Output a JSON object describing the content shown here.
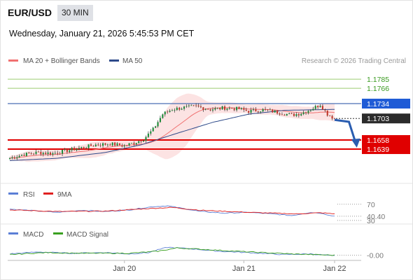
{
  "header": {
    "symbol": "EUR/USD",
    "timeframe": "30 MIN",
    "datetime": "Wednesday, January 21, 2026 5:45:53 PM CET"
  },
  "colors": {
    "ma20": "#f07070",
    "ma50": "#2e4a8a",
    "bollinger_fill": "#fbdede",
    "candle_up": "#1c8c3a",
    "candle_down": "#c0392b",
    "resistance_line": "#9ccc70",
    "pivot_line": "#4a6fb5",
    "support_line": "#e00000",
    "current_label_bg": "#2b2b2b",
    "support_label_bg": "#e00000",
    "pivot_label_bg": "#1f5bd6",
    "arrow": "#2a5db0",
    "rsi": "#5b7fd6",
    "rsi_ma": "#e02020",
    "macd": "#5b7fd6",
    "macd_signal": "#3aa020"
  },
  "chart_data": [
    {
      "type": "candlestick",
      "legend": [
        {
          "name": "MA 20 + Bollinger Bands",
          "color": "#f07070"
        },
        {
          "name": "MA 50",
          "color": "#2e4a8a"
        }
      ],
      "watermark": "Research © 2026 Trading Central",
      "ylim": [
        1.1585,
        1.181
      ],
      "x_ticks": [
        "Jan 20",
        "Jan 21",
        "Jan 22"
      ],
      "x_tick_index": [
        48,
        98,
        136
      ],
      "n_bars": 136,
      "levels": [
        {
          "label": "1.1785",
          "value": 1.1785,
          "kind": "resistance"
        },
        {
          "label": "1.1766",
          "value": 1.1766,
          "kind": "resistance"
        },
        {
          "label": "1.1734",
          "value": 1.1734,
          "kind": "pivot"
        },
        {
          "label": "1.1703",
          "value": 1.1703,
          "kind": "current"
        },
        {
          "label": "1.1658",
          "value": 1.1658,
          "kind": "support"
        },
        {
          "label": "1.1639",
          "value": 1.1639,
          "kind": "support"
        }
      ],
      "close_anchors": [
        [
          0,
          1.162
        ],
        [
          6,
          1.1628
        ],
        [
          12,
          1.1632
        ],
        [
          18,
          1.163
        ],
        [
          24,
          1.1636
        ],
        [
          30,
          1.1642
        ],
        [
          36,
          1.1648
        ],
        [
          42,
          1.165
        ],
        [
          48,
          1.1646
        ],
        [
          52,
          1.1652
        ],
        [
          56,
          1.166
        ],
        [
          60,
          1.168
        ],
        [
          64,
          1.1712
        ],
        [
          68,
          1.1722
        ],
        [
          72,
          1.1725
        ],
        [
          78,
          1.1728
        ],
        [
          84,
          1.1722
        ],
        [
          90,
          1.1725
        ],
        [
          96,
          1.1723
        ],
        [
          100,
          1.1718
        ],
        [
          106,
          1.1721
        ],
        [
          112,
          1.1716
        ],
        [
          118,
          1.171
        ],
        [
          122,
          1.1714
        ],
        [
          126,
          1.1722
        ],
        [
          130,
          1.1732
        ],
        [
          133,
          1.1712
        ],
        [
          136,
          1.1703
        ]
      ],
      "ma50_anchors": [
        [
          0,
          1.1615
        ],
        [
          20,
          1.162
        ],
        [
          40,
          1.1632
        ],
        [
          55,
          1.1648
        ],
        [
          70,
          1.1672
        ],
        [
          85,
          1.1695
        ],
        [
          100,
          1.1712
        ],
        [
          115,
          1.172
        ],
        [
          136,
          1.1722
        ]
      ],
      "forecast": {
        "from": [
          136,
          1.17
        ],
        "via": [
          142,
          1.1696
        ],
        "to": [
          145,
          1.1648
        ]
      }
    },
    {
      "type": "line",
      "name": "RSI",
      "legend": [
        {
          "name": "RSI",
          "color": "#5b7fd6"
        },
        {
          "name": "9MA",
          "color": "#e02020"
        }
      ],
      "ylim": [
        28,
        80
      ],
      "y_ticks": [
        {
          "label": "70",
          "value": 70
        },
        {
          "label": "40.40",
          "value": 40.4
        },
        {
          "label": "30",
          "value": 30
        }
      ],
      "rsi_anchors": [
        [
          0,
          58
        ],
        [
          10,
          54
        ],
        [
          20,
          50
        ],
        [
          30,
          55
        ],
        [
          40,
          52
        ],
        [
          50,
          56
        ],
        [
          60,
          64
        ],
        [
          66,
          66
        ],
        [
          72,
          60
        ],
        [
          80,
          52
        ],
        [
          90,
          48
        ],
        [
          100,
          50
        ],
        [
          110,
          46
        ],
        [
          118,
          42
        ],
        [
          126,
          50
        ],
        [
          130,
          48
        ],
        [
          136,
          40.4
        ]
      ],
      "rsi_ma_anchors": [
        [
          0,
          56
        ],
        [
          20,
          52
        ],
        [
          40,
          53
        ],
        [
          60,
          60
        ],
        [
          68,
          62
        ],
        [
          80,
          55
        ],
        [
          100,
          50
        ],
        [
          120,
          46
        ],
        [
          130,
          49
        ],
        [
          136,
          46
        ]
      ]
    },
    {
      "type": "line",
      "name": "MACD",
      "legend": [
        {
          "name": "MACD",
          "color": "#5b7fd6"
        },
        {
          "name": "MACD Signal",
          "color": "#3aa020"
        }
      ],
      "ylim": [
        -0.0012,
        0.0026
      ],
      "y_ticks": [
        {
          "label": "-0.00",
          "value": 0
        }
      ],
      "macd_anchors": [
        [
          0,
          0.0002
        ],
        [
          12,
          0.0005
        ],
        [
          25,
          0.0003
        ],
        [
          40,
          0.0004
        ],
        [
          50,
          0.0002
        ],
        [
          58,
          0.0004
        ],
        [
          66,
          0.0012
        ],
        [
          75,
          0.001
        ],
        [
          88,
          0.0006
        ],
        [
          100,
          0.0004
        ],
        [
          115,
          0.0001
        ],
        [
          126,
          0.0002
        ],
        [
          136,
          -0.0001
        ]
      ],
      "signal_anchors": [
        [
          0,
          0.0001
        ],
        [
          15,
          0.0004
        ],
        [
          30,
          0.0003
        ],
        [
          50,
          0.0003
        ],
        [
          62,
          0.0006
        ],
        [
          70,
          0.0011
        ],
        [
          85,
          0.0008
        ],
        [
          100,
          0.0005
        ],
        [
          118,
          0.0002
        ],
        [
          136,
          0.0
        ]
      ]
    }
  ]
}
